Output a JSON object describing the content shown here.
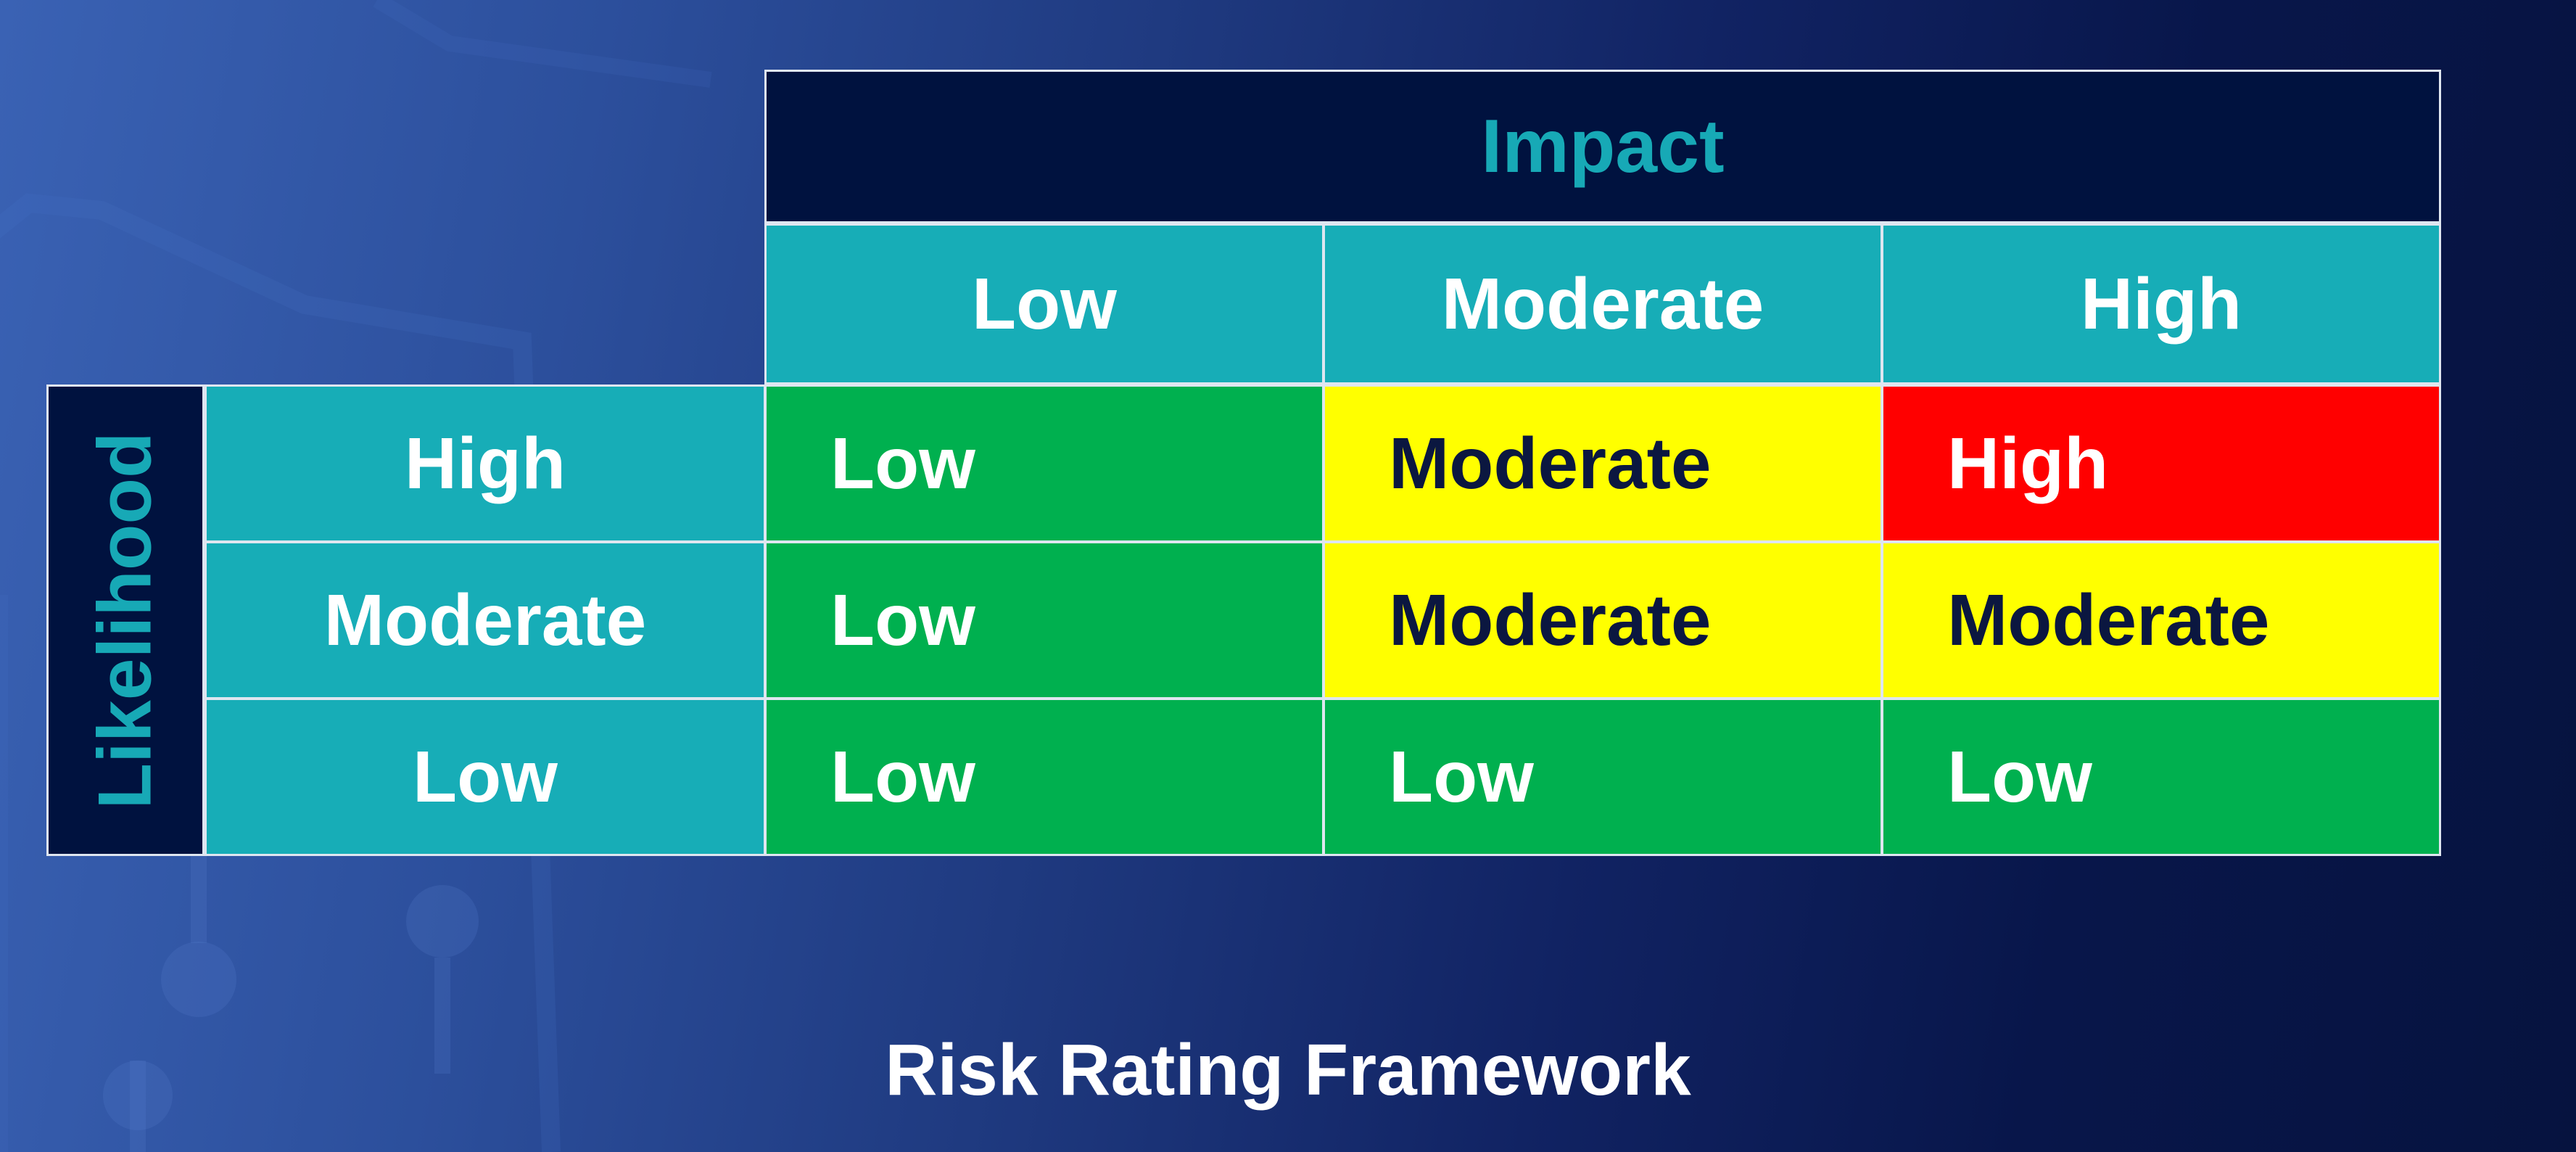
{
  "colors": {
    "header_bg": "#00123f",
    "header_text": "#17a9b6",
    "label_bg": "#17adb7",
    "low": "#00b04f",
    "moderate": "#ffff00",
    "high": "#ff0000"
  },
  "matrix": {
    "column_axis_title": "Impact",
    "row_axis_title": "Likelihood",
    "columns": [
      "Low",
      "Moderate",
      "High"
    ],
    "rows": [
      {
        "label": "High",
        "cells": [
          "Low",
          "Moderate",
          "High"
        ]
      },
      {
        "label": "Moderate",
        "cells": [
          "Low",
          "Moderate",
          "Moderate"
        ]
      },
      {
        "label": "Low",
        "cells": [
          "Low",
          "Low",
          "Low"
        ]
      }
    ]
  },
  "caption": "Risk Rating Framework"
}
